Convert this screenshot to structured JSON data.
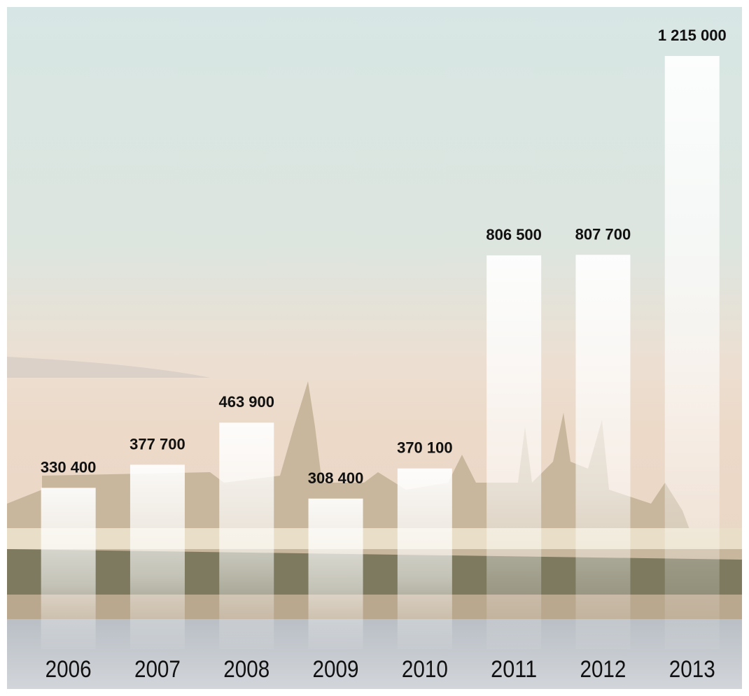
{
  "chart_data": {
    "type": "bar",
    "categories": [
      "2006",
      "2007",
      "2008",
      "2009",
      "2010",
      "2011",
      "2012",
      "2013"
    ],
    "values": [
      330400,
      377700,
      463900,
      308400,
      370100,
      806500,
      807700,
      1215000
    ],
    "value_labels": [
      "330 400",
      "377 700",
      "463 900",
      "308 400",
      "370 100",
      "806 500",
      "807 700",
      "1 215 000"
    ],
    "color": "#ffffff"
  }
}
